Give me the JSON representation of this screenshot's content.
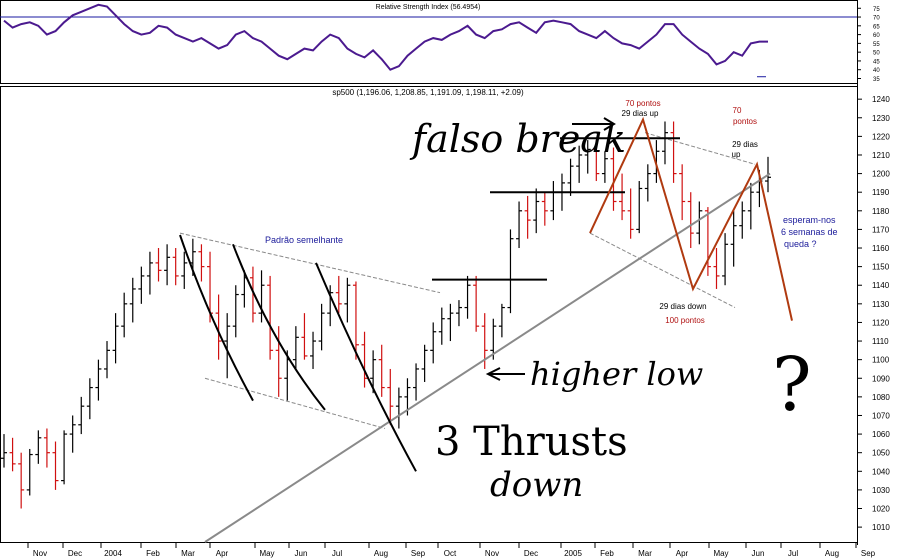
{
  "rsi_panel": {
    "title": "Relative Strength Index (56.4954)",
    "axis_ticks": [
      75,
      70,
      65,
      60,
      55,
      50,
      45,
      40,
      35
    ],
    "reference_level": 70,
    "ylim": [
      33,
      78
    ]
  },
  "price_panel": {
    "title": "sp500 (1,196.06, 1,208.85, 1,191.09, 1,198.11, +2.09)",
    "y_ticks": [
      1240,
      1230,
      1220,
      1210,
      1200,
      1190,
      1180,
      1170,
      1160,
      1150,
      1140,
      1130,
      1120,
      1110,
      1100,
      1090,
      1080,
      1070,
      1060,
      1050,
      1040,
      1030,
      1020,
      1010
    ],
    "ylim": [
      1002,
      1246
    ]
  },
  "x_axis_labels": [
    "Nov",
    "Dec",
    "2004",
    "Feb",
    "Mar",
    "Apr",
    "May",
    "Jun",
    "Jul",
    "Aug",
    "Sep",
    "Oct",
    "Nov",
    "Dec",
    "2005",
    "Feb",
    "Mar",
    "Apr",
    "May",
    "Jun",
    "Jul",
    "Aug",
    "Sep"
  ],
  "annotations": {
    "similar_pattern": "Padrão semelhante",
    "pts70_left": "70 pontos",
    "days29_up_left": "29 dias up",
    "pts70_right_a": "70",
    "pts70_right_b": "pontos",
    "days29_right_a": "29 dias",
    "days29_right_b": "up",
    "expect_a": "esperam-nos",
    "expect_b": "6 semanas de",
    "expect_c": "queda ?",
    "days29_down": "29 dias down",
    "pts100": "100 pontos",
    "hand_false_break": "falso break",
    "hand_higher_low": "higher low",
    "hand_3_thrusts": "3 Thrusts",
    "hand_down": "down",
    "hand_question": "?"
  },
  "colors": {
    "up_bar": "#000000",
    "down_bar": "#d01010",
    "rsi_line": "#4b1a8f",
    "rsi_ref": "#1a1aa0",
    "trend_line": "#8a8a8a",
    "projection": "#b03a10",
    "annotation_red": "#b01010",
    "annotation_blue": "#1a1a9a"
  },
  "chart_data": {
    "type": "candlestick",
    "period": "weekly",
    "series": [
      {
        "name": "sp500",
        "ohlc": [
          [
            1047,
            1060,
            1042,
            1050
          ],
          [
            1050,
            1058,
            1040,
            1044
          ],
          [
            1044,
            1050,
            1020,
            1030
          ],
          [
            1030,
            1052,
            1027,
            1049
          ],
          [
            1049,
            1062,
            1044,
            1058
          ],
          [
            1058,
            1063,
            1042,
            1050
          ],
          [
            1050,
            1056,
            1030,
            1035
          ],
          [
            1035,
            1062,
            1033,
            1060
          ],
          [
            1060,
            1070,
            1050,
            1065
          ],
          [
            1065,
            1080,
            1060,
            1075
          ],
          [
            1075,
            1090,
            1068,
            1085
          ],
          [
            1085,
            1100,
            1078,
            1095
          ],
          [
            1095,
            1110,
            1090,
            1105
          ],
          [
            1105,
            1125,
            1098,
            1118
          ],
          [
            1118,
            1136,
            1112,
            1130
          ],
          [
            1130,
            1144,
            1120,
            1138
          ],
          [
            1138,
            1150,
            1130,
            1145
          ],
          [
            1145,
            1158,
            1135,
            1152
          ],
          [
            1152,
            1160,
            1142,
            1148
          ],
          [
            1148,
            1162,
            1140,
            1155
          ],
          [
            1155,
            1160,
            1140,
            1145
          ],
          [
            1145,
            1158,
            1138,
            1152
          ],
          [
            1152,
            1165,
            1145,
            1158
          ],
          [
            1158,
            1162,
            1142,
            1150
          ],
          [
            1150,
            1158,
            1120,
            1125
          ],
          [
            1125,
            1135,
            1100,
            1110
          ],
          [
            1110,
            1125,
            1090,
            1118
          ],
          [
            1118,
            1140,
            1112,
            1135
          ],
          [
            1135,
            1148,
            1128,
            1144
          ],
          [
            1144,
            1150,
            1120,
            1125
          ],
          [
            1125,
            1148,
            1120,
            1140
          ],
          [
            1140,
            1145,
            1100,
            1105
          ],
          [
            1105,
            1118,
            1080,
            1090
          ],
          [
            1090,
            1105,
            1078,
            1100
          ],
          [
            1100,
            1118,
            1095,
            1112
          ],
          [
            1112,
            1125,
            1100,
            1102
          ],
          [
            1102,
            1115,
            1095,
            1110
          ],
          [
            1110,
            1130,
            1105,
            1125
          ],
          [
            1125,
            1140,
            1118,
            1136
          ],
          [
            1136,
            1145,
            1125,
            1130
          ],
          [
            1130,
            1144,
            1120,
            1140
          ],
          [
            1140,
            1142,
            1100,
            1108
          ],
          [
            1108,
            1115,
            1085,
            1090
          ],
          [
            1090,
            1105,
            1082,
            1100
          ],
          [
            1100,
            1108,
            1080,
            1085
          ],
          [
            1085,
            1095,
            1065,
            1075
          ],
          [
            1075,
            1085,
            1063,
            1080
          ],
          [
            1080,
            1090,
            1070,
            1085
          ],
          [
            1085,
            1098,
            1078,
            1095
          ],
          [
            1095,
            1108,
            1088,
            1105
          ],
          [
            1105,
            1120,
            1098,
            1115
          ],
          [
            1115,
            1128,
            1108,
            1122
          ],
          [
            1122,
            1130,
            1110,
            1125
          ],
          [
            1125,
            1132,
            1118,
            1128
          ],
          [
            1128,
            1145,
            1122,
            1140
          ],
          [
            1140,
            1145,
            1115,
            1118
          ],
          [
            1118,
            1125,
            1095,
            1105
          ],
          [
            1105,
            1122,
            1100,
            1118
          ],
          [
            1118,
            1130,
            1112,
            1128
          ],
          [
            1128,
            1170,
            1125,
            1165
          ],
          [
            1165,
            1185,
            1160,
            1180
          ],
          [
            1180,
            1188,
            1165,
            1175
          ],
          [
            1175,
            1192,
            1168,
            1185
          ],
          [
            1185,
            1190,
            1172,
            1180
          ],
          [
            1180,
            1196,
            1175,
            1190
          ],
          [
            1190,
            1200,
            1180,
            1195
          ],
          [
            1195,
            1208,
            1188,
            1204
          ],
          [
            1204,
            1215,
            1195,
            1210
          ],
          [
            1210,
            1218,
            1200,
            1213
          ],
          [
            1213,
            1218,
            1196,
            1200
          ],
          [
            1200,
            1212,
            1195,
            1208
          ],
          [
            1208,
            1214,
            1180,
            1185
          ],
          [
            1185,
            1200,
            1175,
            1180
          ],
          [
            1180,
            1192,
            1165,
            1170
          ],
          [
            1170,
            1196,
            1168,
            1192
          ],
          [
            1192,
            1205,
            1185,
            1200
          ],
          [
            1200,
            1218,
            1195,
            1212
          ],
          [
            1212,
            1228,
            1205,
            1222
          ],
          [
            1222,
            1228,
            1195,
            1200
          ],
          [
            1200,
            1205,
            1175,
            1185
          ],
          [
            1185,
            1190,
            1160,
            1168
          ],
          [
            1168,
            1185,
            1162,
            1180
          ],
          [
            1180,
            1182,
            1145,
            1150
          ],
          [
            1150,
            1160,
            1138,
            1145
          ],
          [
            1145,
            1168,
            1140,
            1162
          ],
          [
            1162,
            1180,
            1150,
            1172
          ],
          [
            1172,
            1185,
            1165,
            1180
          ],
          [
            1180,
            1195,
            1170,
            1190
          ],
          [
            1190,
            1202,
            1182,
            1196
          ],
          [
            1196,
            1209,
            1190,
            1198
          ]
        ]
      },
      {
        "name": "Relative Strength Index",
        "values": [
          68,
          64,
          66,
          67,
          65,
          60,
          62,
          67,
          71,
          73,
          75,
          77,
          76,
          71,
          66,
          62,
          60,
          61,
          65,
          64,
          60,
          58,
          56,
          58,
          55,
          52,
          54,
          60,
          62,
          58,
          56,
          52,
          48,
          46,
          49,
          52,
          51,
          56,
          60,
          58,
          52,
          49,
          47,
          51,
          46,
          40,
          42,
          48,
          52,
          56,
          58,
          57,
          60,
          62,
          65,
          60,
          58,
          62,
          63,
          66,
          67,
          64,
          61,
          67,
          68,
          67,
          66,
          62,
          60,
          58,
          62,
          58,
          55,
          54,
          52,
          56,
          60,
          66,
          66,
          60,
          56,
          52,
          49,
          43,
          45,
          50,
          48,
          55,
          56,
          56
        ]
      }
    ],
    "title": "sp500 (1,196.06, 1,208.85, 1,191.09, 1,198.11, +2.09)",
    "ylim": [
      1002,
      1246
    ]
  }
}
